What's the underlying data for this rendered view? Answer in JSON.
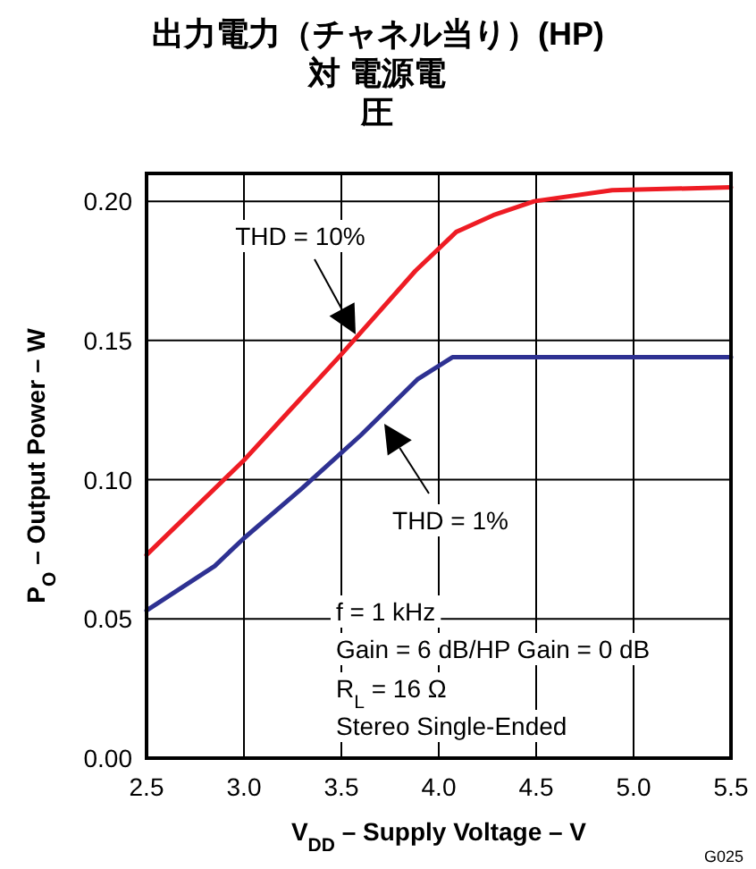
{
  "chart_data": {
    "type": "line",
    "title": "出力電力（チャネル当り）(HP)",
    "subtitle": "対 電源電圧",
    "xlabel": "V$_{DD}$ – Supply Voltage – V",
    "ylabel": "P$_{O}$ – Output Power – W",
    "series": [
      {
        "color": "#ee1c24",
        "x": [
          2.5,
          3.0,
          3.21,
          3.5,
          3.88,
          4.09,
          4.28,
          4.49,
          4.89,
          5.5
        ],
        "values": [
          0.073,
          0.107,
          0.123,
          0.145,
          0.175,
          0.189,
          0.195,
          0.2,
          0.204,
          0.205
        ]
      },
      {
        "color": "#2e3192",
        "x": [
          2.5,
          2.85,
          3.0,
          3.3,
          3.6,
          3.89,
          4.07,
          4.79,
          5.5
        ],
        "values": [
          0.053,
          0.069,
          0.079,
          0.097,
          0.116,
          0.136,
          0.144,
          0.144,
          0.144
        ]
      }
    ],
    "xlim": [
      2.5,
      5.5
    ],
    "ylim": [
      0,
      0.21
    ],
    "xticks": [
      {
        "value": 2.5,
        "label": "2.5"
      },
      {
        "value": 3,
        "label": "3.0"
      },
      {
        "value": 3.5,
        "label": "3.5"
      },
      {
        "value": 4,
        "label": "4.0"
      },
      {
        "value": 4.5,
        "label": "4.5"
      },
      {
        "value": 5,
        "label": "5.0"
      },
      {
        "value": 5.5,
        "label": "5.5"
      }
    ],
    "yticks": [
      {
        "value": 0,
        "label": "0.00"
      },
      {
        "value": 0.05,
        "label": "0.05"
      },
      {
        "value": 0.1,
        "label": "0.10"
      },
      {
        "value": 0.15,
        "label": "0.15"
      },
      {
        "value": 0.2,
        "label": "0.20"
      }
    ],
    "grid": true,
    "marker": "none",
    "line_style": "solid",
    "annotations": [
      "THD = 10%",
      "THD = 1%",
      "f = 1 kHz",
      "Gain = 6 dB/HP Gain = 0 dB",
      "R$_{L}$ = 16 Ω",
      "Stereo Single-Ended",
      "G025"
    ]
  }
}
